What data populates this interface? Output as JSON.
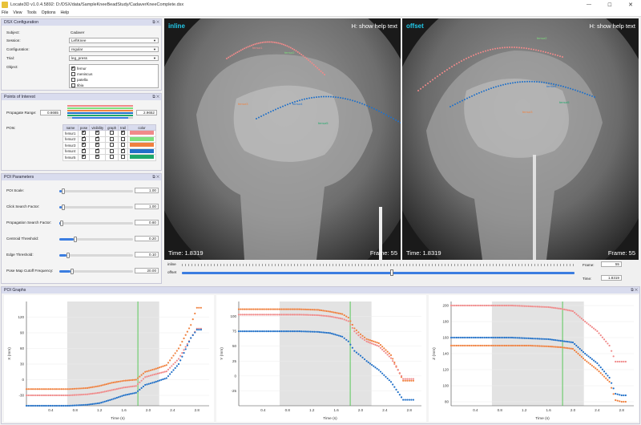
{
  "window": {
    "title": "Locate3D v1.0.4.5892: D:/DSX/data/SampleKneeBeadStudy/CadaverKneeComplete.dsx",
    "min": "—",
    "max": "☐",
    "close": "✕"
  },
  "menu": [
    "File",
    "View",
    "Tools",
    "Options",
    "Help"
  ],
  "dsx_config": {
    "title": "DSX Configuration",
    "subject_label": "Subject:",
    "subject_value": "Cadaver",
    "session_label": "Session:",
    "session_value": "LeftKnee",
    "configuration_label": "Configuration:",
    "configuration_value": "regular",
    "trial_label": "Trial:",
    "trial_value": "leg_press",
    "object_label": "Object:",
    "objects": [
      {
        "name": "femur",
        "checked": true
      },
      {
        "name": "meniscus",
        "checked": false
      },
      {
        "name": "patella",
        "checked": false
      },
      {
        "name": "tibia",
        "checked": false
      }
    ]
  },
  "poi": {
    "title": "Points of Interest",
    "range_label": "Propagate Range:",
    "range_min": "0.6665",
    "range_max": "2.9652",
    "pois_label": "POIs:",
    "headers": [
      "name",
      "pose",
      "visibility",
      "graph",
      "trail",
      "color"
    ],
    "rows": [
      {
        "name": "femur1",
        "pose": true,
        "visibility": true,
        "graph": false,
        "trail": true,
        "color": "#f08a8a"
      },
      {
        "name": "femur2",
        "pose": true,
        "visibility": true,
        "graph": false,
        "trail": false,
        "color": "#7ee07e"
      },
      {
        "name": "femur3",
        "pose": true,
        "visibility": true,
        "graph": false,
        "trail": false,
        "color": "#f0813f"
      },
      {
        "name": "femur4",
        "pose": true,
        "visibility": true,
        "graph": false,
        "trail": true,
        "color": "#2271c8"
      },
      {
        "name": "femur5",
        "pose": true,
        "visibility": true,
        "graph": false,
        "trail": false,
        "color": "#1ea86a"
      }
    ]
  },
  "params": {
    "title": "POI Parameters",
    "items": [
      {
        "label": "POI Scale:",
        "value": "1.00",
        "level": 0.03
      },
      {
        "label": "Click Search Factor:",
        "value": "1.00",
        "level": 0.03
      },
      {
        "label": "Propagation Search Factor:",
        "value": "0.60",
        "level": 0.01
      },
      {
        "label": "Centroid Threshold:",
        "value": "0.20",
        "level": 0.2
      },
      {
        "label": "Edge Threshold:",
        "value": "0.10",
        "level": 0.1
      },
      {
        "label": "Pose Map Cutoff Frequency:",
        "value": "20.00",
        "level": 0.15
      }
    ]
  },
  "viewers": {
    "left_label": "inline",
    "right_label": "offset",
    "help": "H: show help text",
    "time": "Time: 1.8319",
    "frame": "Frame: 55",
    "poi_labels": [
      "femur1",
      "femur2",
      "femur3",
      "femur4",
      "femur5"
    ]
  },
  "playback": {
    "row1_label": "inline",
    "row2_label": "offset",
    "frame_label": "Frame:",
    "frame_value": "55",
    "time_label": "Time:",
    "time_value": "1.8319",
    "position": 0.53
  },
  "graphs": {
    "title": "POI Graphs",
    "xlabel": "Time (s)",
    "ylabels": [
      "X (mm)",
      "Y (mm)",
      "Z (mm)"
    ]
  },
  "chart_data": [
    {
      "type": "scatter",
      "xlabel": "Time (s)",
      "ylabel": "X (mm)",
      "xlim": [
        0.0,
        3.0
      ],
      "ylim": [
        -50,
        150
      ],
      "xticks": [
        0.4,
        0.8,
        1.2,
        1.6,
        2.0,
        2.4,
        2.8
      ],
      "yticks": [
        -30,
        0,
        30,
        60,
        90,
        120
      ],
      "shaded_range": [
        0.67,
        2.18
      ],
      "current_time": 1.83,
      "series": [
        {
          "color": "#f0813f",
          "x": [
            0.0,
            0.7,
            1.0,
            1.2,
            1.4,
            1.6,
            1.8,
            1.95,
            2.1,
            2.3,
            2.5,
            2.7,
            2.8,
            2.9
          ],
          "y": [
            -18,
            -18,
            -16,
            -12,
            -6,
            -2,
            0,
            15,
            20,
            28,
            60,
            105,
            138,
            138
          ]
        },
        {
          "color": "#f08a8a",
          "x": [
            0.0,
            0.7,
            1.0,
            1.2,
            1.4,
            1.6,
            1.8,
            1.95,
            2.1,
            2.3,
            2.5,
            2.7,
            2.8,
            2.9
          ],
          "y": [
            -30,
            -30,
            -28,
            -25,
            -20,
            -15,
            -12,
            5,
            10,
            16,
            40,
            80,
            98,
            98
          ]
        },
        {
          "color": "#2271c8",
          "x": [
            0.0,
            0.7,
            1.0,
            1.2,
            1.4,
            1.6,
            1.8,
            1.95,
            2.1,
            2.3,
            2.5,
            2.7,
            2.8,
            2.9
          ],
          "y": [
            -50,
            -50,
            -48,
            -45,
            -38,
            -30,
            -25,
            -10,
            -5,
            3,
            30,
            80,
            96,
            96
          ]
        }
      ]
    },
    {
      "type": "scatter",
      "xlabel": "Time (s)",
      "ylabel": "Y (mm)",
      "xlim": [
        0.0,
        3.0
      ],
      "ylim": [
        -50,
        125
      ],
      "xticks": [
        0.4,
        0.8,
        1.2,
        1.6,
        2.0,
        2.4,
        2.8
      ],
      "yticks": [
        -25,
        0,
        25,
        50,
        75,
        100
      ],
      "shaded_range": [
        0.67,
        2.18
      ],
      "current_time": 1.83,
      "series": [
        {
          "color": "#f0813f",
          "x": [
            0.0,
            0.7,
            1.0,
            1.3,
            1.5,
            1.7,
            1.8,
            1.9,
            2.0,
            2.1,
            2.3,
            2.5,
            2.7,
            2.8,
            2.9
          ],
          "y": [
            112,
            112,
            112,
            111,
            108,
            104,
            98,
            80,
            70,
            62,
            55,
            35,
            -8,
            -8,
            -8
          ]
        },
        {
          "color": "#f08a8a",
          "x": [
            0.0,
            0.7,
            1.0,
            1.3,
            1.5,
            1.7,
            1.8,
            1.9,
            2.0,
            2.1,
            2.3,
            2.5,
            2.7,
            2.8,
            2.9
          ],
          "y": [
            103,
            103,
            103,
            102,
            100,
            96,
            92,
            75,
            65,
            58,
            50,
            30,
            -5,
            -5,
            -5
          ]
        },
        {
          "color": "#2271c8",
          "x": [
            0.0,
            0.7,
            1.0,
            1.3,
            1.5,
            1.7,
            1.8,
            1.9,
            2.0,
            2.1,
            2.3,
            2.5,
            2.7,
            2.8,
            2.9
          ],
          "y": [
            75,
            75,
            75,
            74,
            72,
            66,
            58,
            42,
            34,
            25,
            10,
            -10,
            -40,
            -40,
            -40
          ]
        }
      ]
    },
    {
      "type": "scatter",
      "xlabel": "Time (s)",
      "ylabel": "Z (mm)",
      "xlim": [
        0.0,
        3.0
      ],
      "ylim": [
        75,
        205
      ],
      "xticks": [
        0.4,
        0.8,
        1.2,
        1.6,
        2.0,
        2.4,
        2.8
      ],
      "yticks": [
        80,
        100,
        120,
        140,
        160,
        180,
        200
      ],
      "shaded_range": [
        0.67,
        2.18
      ],
      "current_time": 1.83,
      "series": [
        {
          "color": "#f08a8a",
          "x": [
            0.0,
            0.7,
            1.0,
            1.3,
            1.6,
            1.8,
            2.0,
            2.2,
            2.4,
            2.6,
            2.7,
            2.8,
            2.9
          ],
          "y": [
            200,
            200,
            200,
            199,
            198,
            196,
            193,
            180,
            168,
            150,
            130,
            130,
            130
          ]
        },
        {
          "color": "#2271c8",
          "x": [
            0.0,
            0.7,
            1.0,
            1.3,
            1.6,
            1.8,
            2.0,
            2.2,
            2.4,
            2.6,
            2.7,
            2.8,
            2.9
          ],
          "y": [
            160,
            160,
            160,
            159,
            158,
            156,
            154,
            140,
            128,
            110,
            90,
            88,
            88
          ]
        },
        {
          "color": "#f0813f",
          "x": [
            0.0,
            0.7,
            1.0,
            1.3,
            1.6,
            1.8,
            2.0,
            2.2,
            2.4,
            2.6,
            2.7,
            2.8,
            2.9
          ],
          "y": [
            150,
            150,
            150,
            150,
            149,
            148,
            146,
            132,
            120,
            105,
            82,
            80,
            80
          ]
        }
      ]
    }
  ]
}
